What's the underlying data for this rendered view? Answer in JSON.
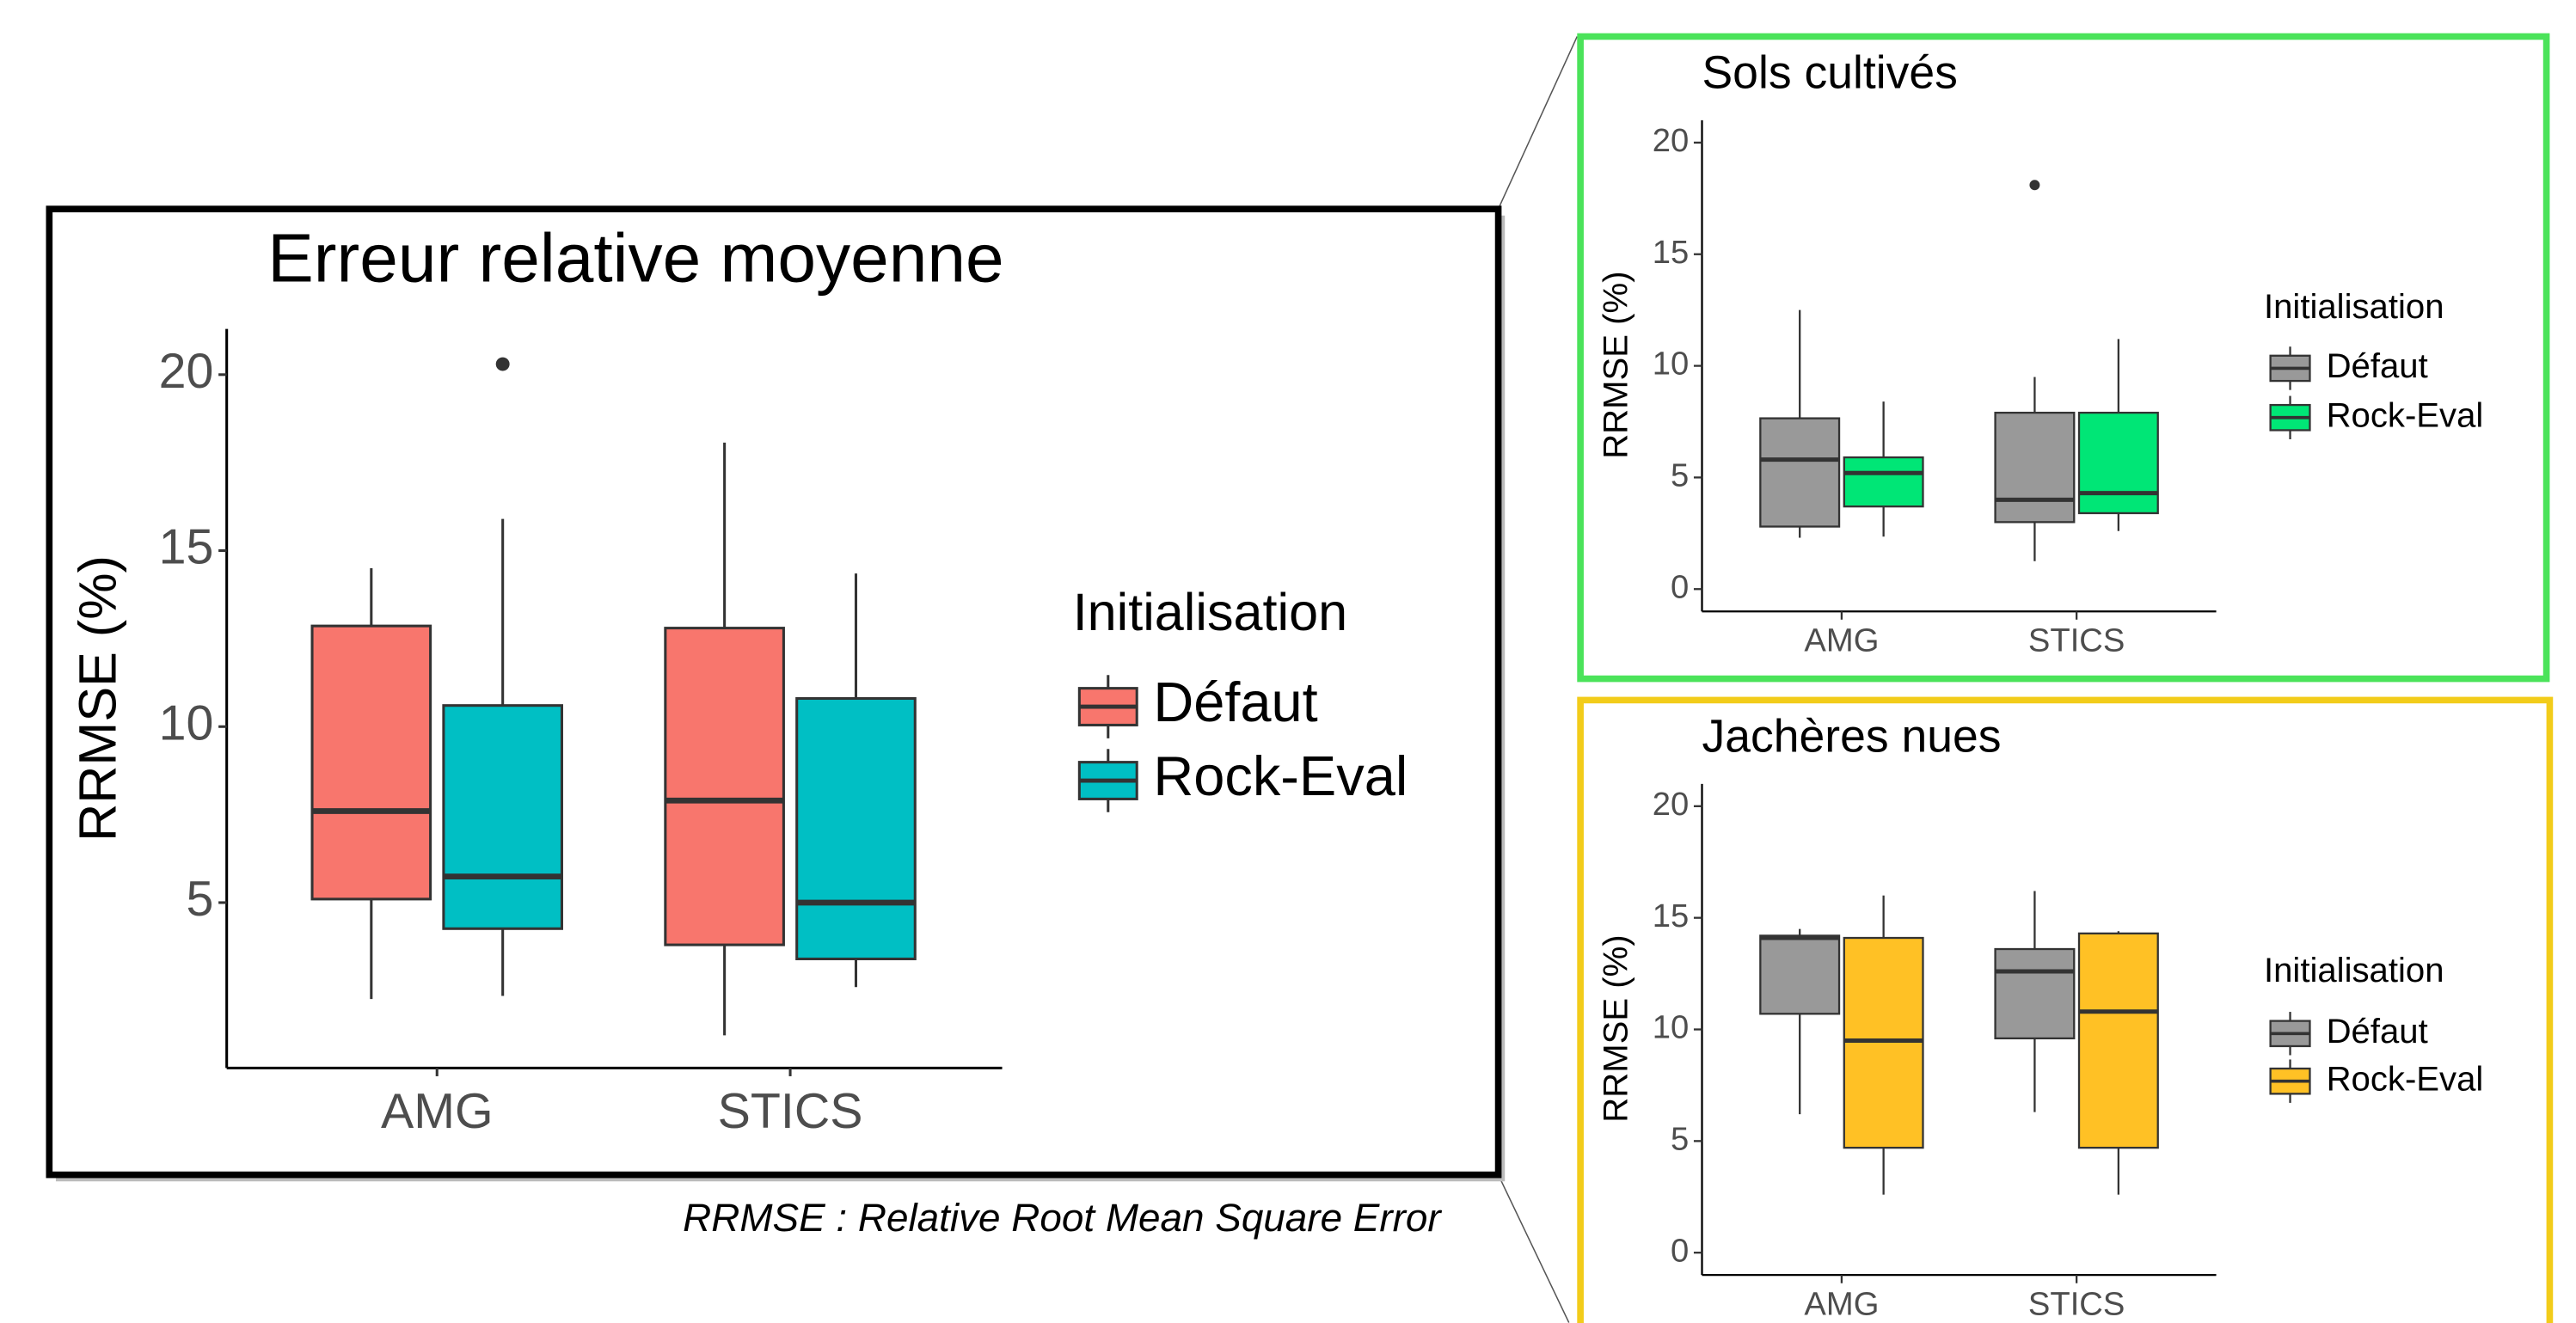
{
  "chart_data": [
    {
      "type": "box",
      "title": "Erreur relative moyenne",
      "ylabel": "RRMSE (%)",
      "legend_title": "Initialisation",
      "categories": [
        "AMG",
        "STICS"
      ],
      "ylim": [
        0.3,
        21.3
      ],
      "yticks": [
        5,
        10,
        15,
        20
      ],
      "series": [
        {
          "name": "Défaut",
          "color": "#f8766d",
          "boxes": [
            {
              "min": 2.26,
              "q1": 5.1,
              "median": 7.6,
              "q3": 12.86,
              "max": 14.5
            },
            {
              "min": 1.23,
              "q1": 3.8,
              "median": 7.9,
              "q3": 12.8,
              "max": 18.07
            }
          ]
        },
        {
          "name": "Rock-Eval",
          "color": "#00bfc4",
          "boxes": [
            {
              "min": 2.35,
              "q1": 4.26,
              "median": 5.74,
              "q3": 10.6,
              "max": 15.9,
              "outliers": [
                20.3
              ]
            },
            {
              "min": 2.6,
              "q1": 3.4,
              "median": 5.0,
              "q3": 10.8,
              "max": 14.35
            }
          ]
        }
      ]
    },
    {
      "type": "box",
      "title": "Sols cultivés",
      "ylabel": "RRMSE (%)",
      "legend_title": "Initialisation",
      "categories": [
        "AMG",
        "STICS"
      ],
      "ylim": [
        -1.0,
        21.0
      ],
      "yticks": [
        0,
        5,
        10,
        15,
        20
      ],
      "series": [
        {
          "name": "Défaut",
          "color": "#999999",
          "boxes": [
            {
              "min": 2.3,
              "q1": 2.8,
              "median": 5.8,
              "q3": 7.65,
              "max": 12.5
            },
            {
              "min": 1.25,
              "q1": 3.0,
              "median": 4.0,
              "q3": 7.9,
              "max": 9.5,
              "outliers": [
                18.1
              ]
            }
          ]
        },
        {
          "name": "Rock-Eval",
          "color": "#00e676",
          "boxes": [
            {
              "min": 2.35,
              "q1": 3.7,
              "median": 5.2,
              "q3": 5.9,
              "max": 8.4
            },
            {
              "min": 2.6,
              "q1": 3.4,
              "median": 4.3,
              "q3": 7.9,
              "max": 11.2
            }
          ]
        }
      ]
    },
    {
      "type": "box",
      "title": "Jachères nues",
      "ylabel": "RRMSE (%)",
      "legend_title": "Initialisation",
      "categories": [
        "AMG",
        "STICS"
      ],
      "ylim": [
        -1.0,
        21.0
      ],
      "yticks": [
        0,
        5,
        10,
        15,
        20
      ],
      "series": [
        {
          "name": "Défaut",
          "color": "#999999",
          "boxes": [
            {
              "min": 6.2,
              "q1": 10.7,
              "median": 14.1,
              "q3": 14.2,
              "max": 14.5
            },
            {
              "min": 6.3,
              "q1": 9.6,
              "median": 12.6,
              "q3": 13.6,
              "max": 16.2
            }
          ]
        },
        {
          "name": "Rock-Eval",
          "color": "#ffc125",
          "boxes": [
            {
              "min": 2.6,
              "q1": 4.7,
              "median": 9.5,
              "q3": 14.1,
              "max": 16.0
            },
            {
              "min": 2.6,
              "q1": 4.7,
              "median": 10.8,
              "q3": 14.3,
              "max": 14.4
            }
          ]
        }
      ]
    }
  ],
  "footnote": "RRMSE : Relative Root Mean Square Error"
}
